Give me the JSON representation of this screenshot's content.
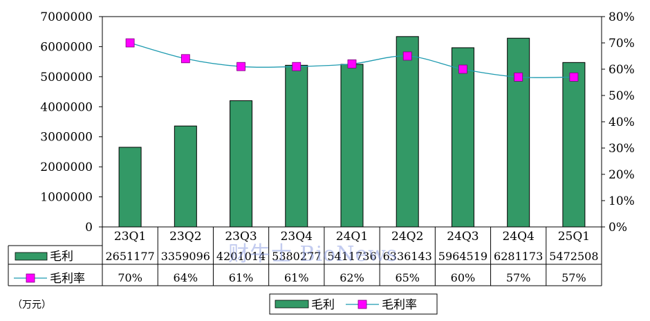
{
  "chart_data": {
    "type": "bar",
    "categories": [
      "23Q1",
      "23Q2",
      "23Q3",
      "23Q4",
      "24Q1",
      "24Q2",
      "24Q3",
      "24Q4",
      "25Q1"
    ],
    "series": [
      {
        "name": "毛利",
        "type": "bar",
        "axis": "left",
        "values": [
          2651177,
          3359096,
          4201014,
          5380277,
          5411736,
          6336143,
          5964519,
          6281173,
          5472508
        ],
        "labels": [
          "2651177",
          "3359096",
          "4201014",
          "5380277",
          "5411736",
          "6336143",
          "5964519",
          "6281173",
          "5472508"
        ]
      },
      {
        "name": "毛利率",
        "type": "line",
        "axis": "right",
        "values": [
          70,
          64,
          61,
          61,
          62,
          65,
          60,
          57,
          57
        ],
        "labels": [
          "70%",
          "64%",
          "61%",
          "61%",
          "62%",
          "65%",
          "60%",
          "57%",
          "57%"
        ]
      }
    ],
    "y_left": {
      "min": 0,
      "max": 7000000,
      "step": 1000000,
      "ticks": [
        "0",
        "1000000",
        "2000000",
        "3000000",
        "4000000",
        "5000000",
        "6000000",
        "7000000"
      ]
    },
    "y_right": {
      "min": 0,
      "max": 80,
      "step": 10,
      "ticks": [
        "0%",
        "10%",
        "20%",
        "30%",
        "40%",
        "50%",
        "60%",
        "70%",
        "80%"
      ]
    },
    "unit_label": "（万元）",
    "watermark": "财牛士 BioNews",
    "legend": {
      "position": "bottom-center",
      "bar_label": "毛利",
      "line_label": "毛利率"
    },
    "colors": {
      "bar": "#339966",
      "bar_edge": "#000000",
      "line": "#1f9bb0",
      "marker": "#ff00ff"
    },
    "grid": false
  }
}
